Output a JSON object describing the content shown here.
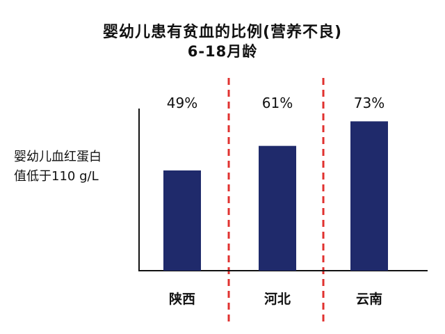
{
  "chart_data": {
    "type": "bar",
    "title": "婴幼儿患有贫血的比例(营养不良)",
    "subtitle": "6-18月龄",
    "ylabel_lines": [
      "婴幼儿血红蛋白",
      "值低于110 g/L"
    ],
    "categories": [
      "陕西",
      "河北",
      "云南"
    ],
    "values": [
      49,
      61,
      73
    ],
    "value_labels": [
      "49%",
      "61%",
      "73%"
    ],
    "ylim": [
      0,
      100
    ],
    "grid": false,
    "bar_color": "#1f2a6b",
    "divider_color": "#e0312f"
  }
}
